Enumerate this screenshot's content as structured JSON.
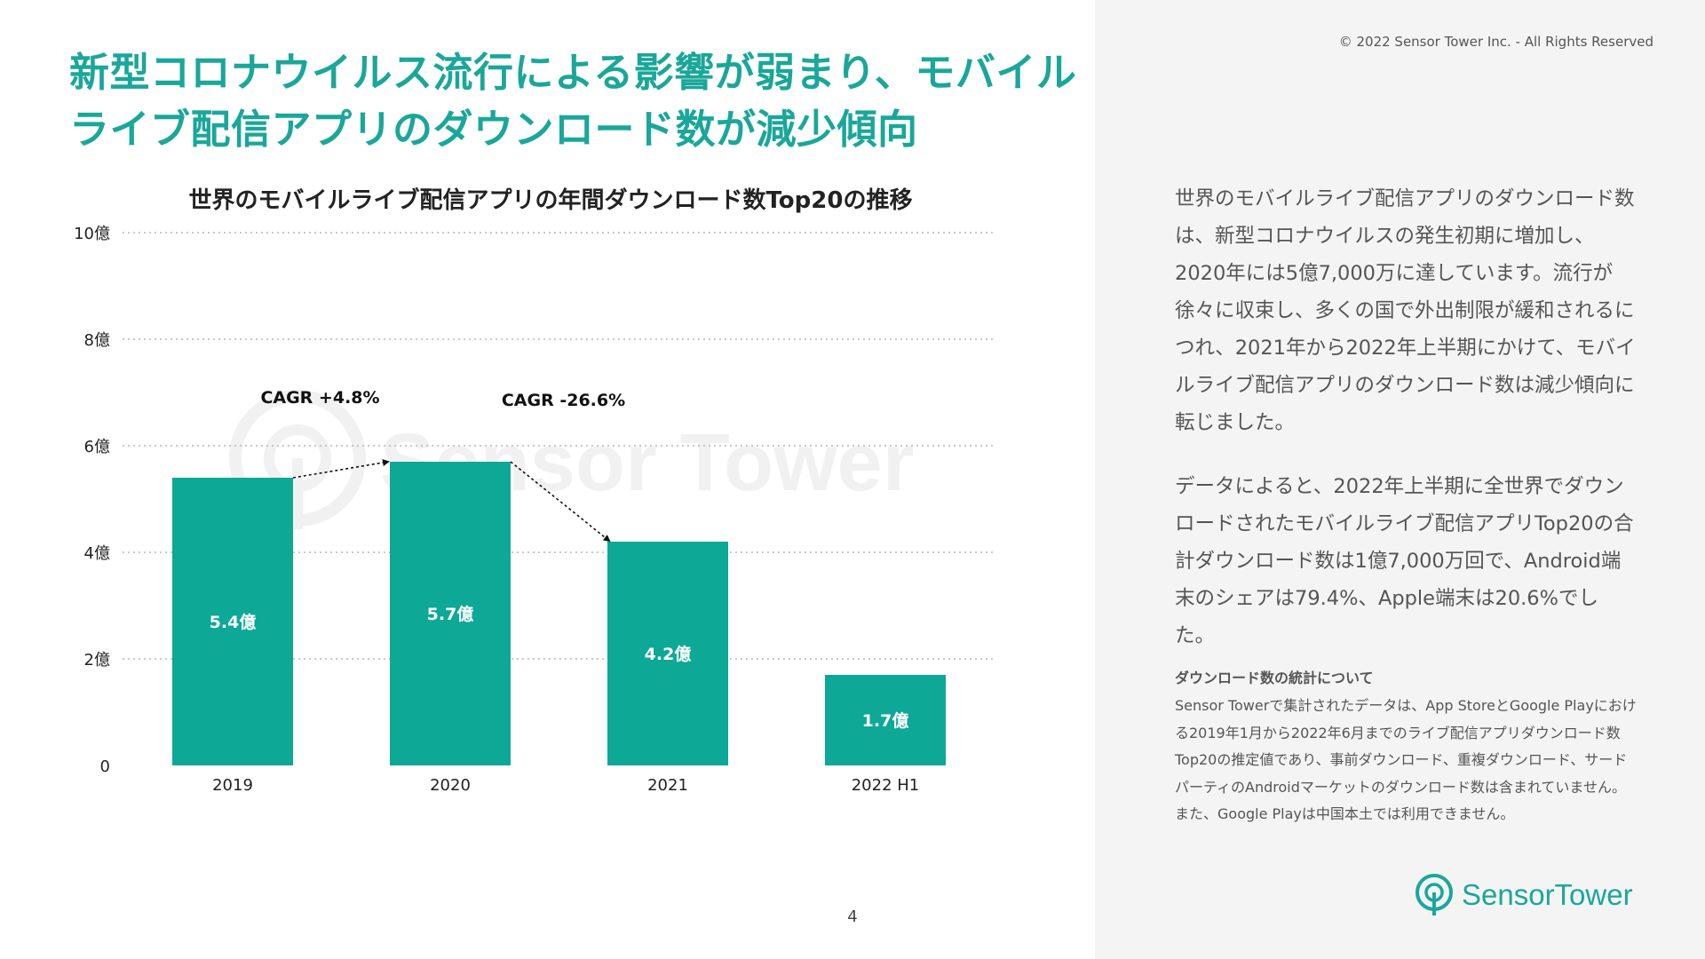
{
  "copyright": "© 2022 Sensor Tower Inc. - All Rights Reserved",
  "title_lines": [
    "新型コロナウイルス流行による影響が弱まり、モバイル",
    "ライブ配信アプリのダウンロード数が減少傾向"
  ],
  "chart_data": {
    "type": "bar",
    "title": "世界のモバイルライブ配信アプリの年間ダウンロード数Top20の推移",
    "categories": [
      "2019",
      "2020",
      "2021",
      "2022 H1"
    ],
    "values": [
      5.4,
      5.7,
      4.2,
      1.7
    ],
    "value_labels": [
      "5.4億",
      "5.7億",
      "4.2億",
      "1.7億"
    ],
    "y_ticks": [
      0,
      2,
      4,
      6,
      8,
      10
    ],
    "y_tick_labels": [
      "0",
      "2億",
      "4億",
      "6億",
      "8億",
      "10億"
    ],
    "ylim": [
      0,
      10
    ],
    "grid": "dotted horizontal",
    "bar_color": "#0ea896",
    "annotations": [
      {
        "text": "CAGR +4.8%",
        "from": "2019",
        "to": "2020"
      },
      {
        "text": "CAGR -26.6%",
        "from": "2020",
        "to": "2021"
      }
    ],
    "watermark": "Sensor Tower"
  },
  "body_paragraphs": [
    "世界のモバイルライブ配信アプリのダウンロード数は、新型コロナウイルスの発生初期に増加し、2020年には5億7,000万に達しています。流行が徐々に収束し、多くの国で外出制限が緩和されるにつれ、2021年から2022年上半期にかけて、モバイルライブ配信アプリのダウンロード数は減少傾向に転じました。",
    "データによると、2022年上半期に全世界でダウンロードされたモバイルライブ配信アプリTop20の合計ダウンロード数は1億7,000万回で、Android端末のシェアは79.4%、Apple端末は20.6%でした。"
  ],
  "notes": {
    "heading": "ダウンロード数の統計について",
    "body": "Sensor Towerで集計されたデータは、App StoreとGoogle Playにおける2019年1月から2022年6月までのライブ配信アプリダウンロード数Top20の推定値であり、事前ダウンロード、重複ダウンロード、サードパーティのAndroidマーケットのダウンロード数は含まれていません。また、Google Playは中国本土では利用できません。"
  },
  "page_number": "4",
  "logo": {
    "text": "SensorTower",
    "icon": "sensor-tower-logo-icon"
  },
  "colors": {
    "accent": "#1aa79a",
    "bar": "#0ea896",
    "panel": "#f4f4f4"
  }
}
